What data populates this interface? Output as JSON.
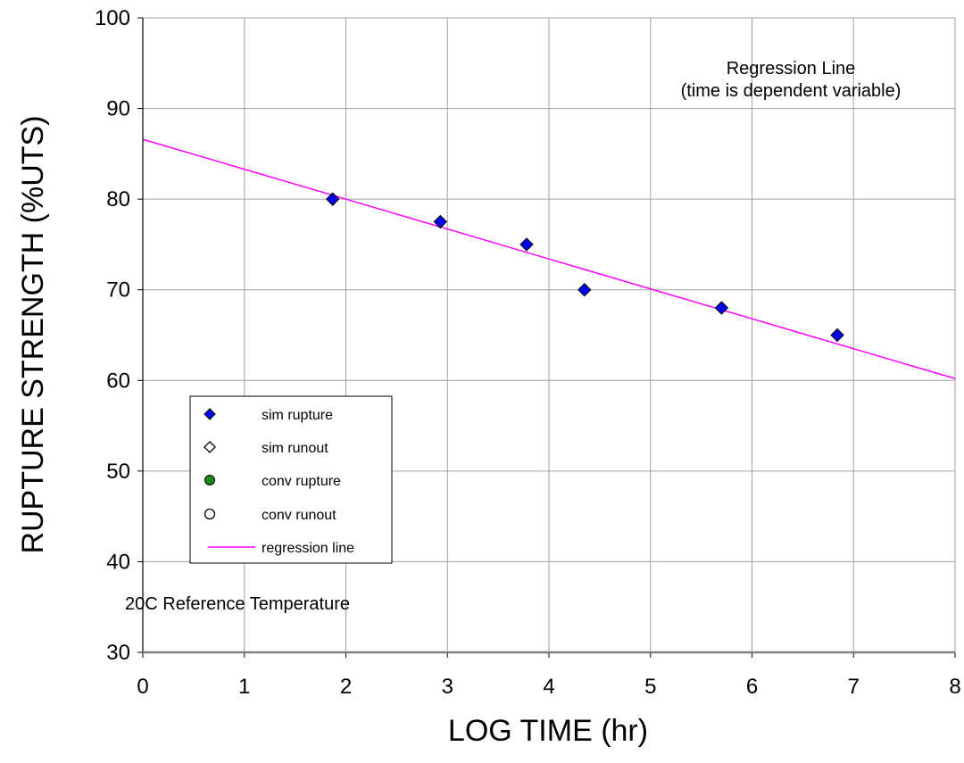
{
  "chart_data": {
    "type": "scatter",
    "xlabel": "LOG TIME (hr)",
    "ylabel": "RUPTURE STRENGTH (%UTS)",
    "xlim": [
      0,
      8
    ],
    "ylim": [
      30,
      100
    ],
    "x_ticks": [
      "0",
      "1",
      "2",
      "3",
      "4",
      "5",
      "6",
      "7",
      "8"
    ],
    "y_ticks": [
      "30",
      "40",
      "50",
      "60",
      "70",
      "80",
      "90",
      "100"
    ],
    "grid": true,
    "legend_position": "lower-left",
    "annotations": {
      "top_right_line1": "Regression Line",
      "top_right_line2": "(time is dependent variable)",
      "bottom_left": "20C Reference Temperature"
    },
    "series": [
      {
        "name": "sim rupture",
        "marker": "diamond",
        "color": "#0000ee",
        "x": [
          1.87,
          2.93,
          3.78,
          4.35,
          5.7,
          6.84
        ],
        "y": [
          80,
          77.5,
          75,
          70,
          68,
          65
        ]
      },
      {
        "name": "sim runout",
        "marker": "diamond-open",
        "color": "#ffffff",
        "x": [],
        "y": []
      },
      {
        "name": "conv rupture",
        "marker": "circle",
        "color": "#1a8a1a",
        "x": [],
        "y": []
      },
      {
        "name": "conv runout",
        "marker": "circle-open",
        "color": "#ffffff",
        "x": [],
        "y": []
      },
      {
        "name": "regression line",
        "type": "line",
        "color": "#ff00ff",
        "x": [
          0,
          8
        ],
        "y": [
          86.6,
          60.2
        ]
      }
    ]
  }
}
